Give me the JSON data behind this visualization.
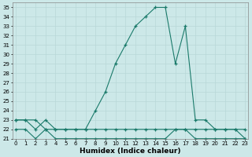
{
  "xlabel": "Humidex (Indice chaleur)",
  "bg_color": "#cce8e8",
  "line1_x": [
    0,
    1,
    2,
    3,
    4,
    5,
    6,
    7,
    8,
    9,
    10,
    11,
    12,
    13,
    14,
    15,
    16,
    17,
    18,
    19,
    20,
    21,
    22,
    23
  ],
  "line1_y": [
    23,
    23,
    23,
    22,
    22,
    22,
    22,
    22,
    24,
    26,
    29,
    31,
    33,
    34,
    35,
    35,
    29,
    33,
    23,
    23,
    22,
    22,
    22,
    21
  ],
  "line2_x": [
    0,
    1,
    2,
    3,
    4,
    5,
    6,
    7,
    8,
    9,
    10,
    11,
    12,
    13,
    14,
    15,
    16,
    17,
    18,
    19,
    20,
    21,
    22,
    23
  ],
  "line2_y": [
    23,
    23,
    22,
    23,
    22,
    22,
    22,
    22,
    22,
    22,
    22,
    22,
    22,
    22,
    22,
    22,
    22,
    22,
    22,
    22,
    22,
    22,
    22,
    22
  ],
  "line3_x": [
    0,
    1,
    2,
    3,
    4,
    5,
    6,
    7,
    8,
    9,
    10,
    11,
    12,
    13,
    14,
    15,
    16,
    17,
    18,
    19,
    20,
    21,
    22,
    23
  ],
  "line3_y": [
    22,
    22,
    21,
    22,
    21,
    21,
    21,
    21,
    21,
    21,
    21,
    21,
    21,
    21,
    21,
    21,
    22,
    22,
    21,
    21,
    21,
    21,
    21,
    21
  ],
  "line_color": "#1a7a6a",
  "marker": "+",
  "xlim": [
    0,
    23
  ],
  "ylim": [
    21,
    35.5
  ],
  "yticks": [
    21,
    22,
    23,
    24,
    25,
    26,
    27,
    28,
    29,
    30,
    31,
    32,
    33,
    34,
    35
  ],
  "xticks": [
    0,
    1,
    2,
    3,
    4,
    5,
    6,
    7,
    8,
    9,
    10,
    11,
    12,
    13,
    14,
    15,
    16,
    17,
    18,
    19,
    20,
    21,
    22,
    23
  ],
  "xtick_labels": [
    "0",
    "1",
    "2",
    "3",
    "4",
    "5",
    "6",
    "7",
    "8",
    "9",
    "10",
    "11",
    "12",
    "13",
    "14",
    "15",
    "16",
    "17",
    "18",
    "19",
    "20",
    "21",
    "22",
    "23"
  ],
  "grid_color": "#b8d8d8",
  "tick_fontsize": 5,
  "xlabel_fontsize": 6.5
}
